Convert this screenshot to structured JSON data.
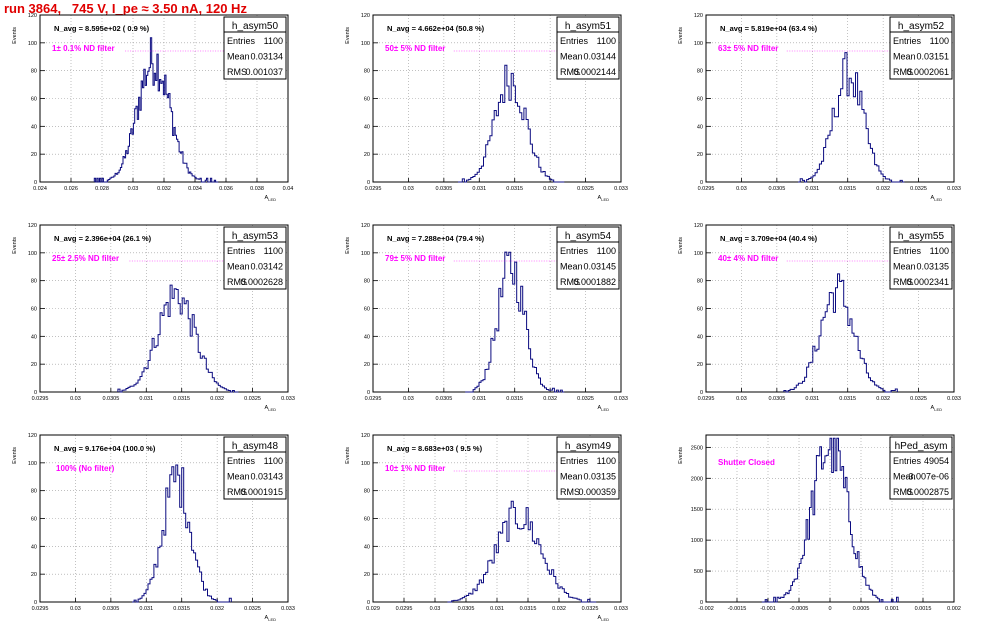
{
  "page_title": "run 3864,   745 V, I_pe ≈ 3.50 nA, 120 Hz",
  "colors": {
    "histogram": "#0b0b80",
    "annotation": "#ff00ff",
    "title": "#e00000",
    "grid": "#9a9a9a"
  },
  "chart_data": [
    {
      "type": "bar",
      "name": "h_asym50",
      "stats": {
        "entries": "1100",
        "mean": "0.03134",
        "rms": "0.001037"
      },
      "navg": "N_avg = 8.595e+02 ( 0.9 %)",
      "filter": "1± 0.1% ND filter",
      "xlabel": "A_LED",
      "ylabel": "Events",
      "xlim": [
        0.024,
        0.04
      ],
      "xticks": [
        0.024,
        0.026,
        0.028,
        0.03,
        0.032,
        0.034,
        0.036,
        0.038,
        0.04
      ],
      "xtick_labels": [
        "0.024",
        "0.026",
        "0.028",
        "0.03",
        "0.032",
        "0.034",
        "0.036",
        "0.038",
        "0.04"
      ],
      "ylim": [
        0,
        120
      ],
      "yticks": [
        0,
        20,
        40,
        60,
        80,
        100,
        120
      ],
      "dist": {
        "mean": 0.03134,
        "rms": 0.001037,
        "peak": 88,
        "bins": 95,
        "lo": 0.0275,
        "hi": 0.0355
      }
    },
    {
      "type": "bar",
      "name": "h_asym51",
      "stats": {
        "entries": "1100",
        "mean": "0.03144",
        "rms": "0.0002144"
      },
      "navg": "N_avg = 4.662e+04 (50.8 %)",
      "filter": "50± 5% ND filter",
      "xlabel": "A_LED",
      "ylabel": "Events",
      "xlim": [
        0.0295,
        0.033
      ],
      "xticks": [
        0.0295,
        0.03,
        0.0305,
        0.031,
        0.0315,
        0.032,
        0.0325,
        0.033
      ],
      "xtick_labels": [
        "0.0295",
        "0.03",
        "0.0305",
        "0.031",
        "0.0315",
        "0.032",
        "0.0325",
        "0.033"
      ],
      "ylim": [
        0,
        120
      ],
      "yticks": [
        0,
        20,
        40,
        60,
        80,
        100,
        120
      ],
      "dist": {
        "mean": 0.03144,
        "rms": 0.0002144,
        "peak": 75,
        "bins": 50,
        "lo": 0.0307,
        "hi": 0.0322
      }
    },
    {
      "type": "bar",
      "name": "h_asym52",
      "stats": {
        "entries": "1100",
        "mean": "0.03151",
        "rms": "0.0002061"
      },
      "navg": "N_avg = 5.819e+04 (63.4 %)",
      "filter": "63± 5% ND filter",
      "xlabel": "A_LED",
      "ylabel": "Events",
      "xlim": [
        0.0295,
        0.033
      ],
      "xticks": [
        0.0295,
        0.03,
        0.0305,
        0.031,
        0.0315,
        0.032,
        0.0325,
        0.033
      ],
      "xtick_labels": [
        "0.0295",
        "0.03",
        "0.0305",
        "0.031",
        "0.0315",
        "0.032",
        "0.0325",
        "0.033"
      ],
      "ylim": [
        0,
        120
      ],
      "yticks": [
        0,
        20,
        40,
        60,
        80,
        100,
        120
      ],
      "dist": {
        "mean": 0.03151,
        "rms": 0.0002061,
        "peak": 78,
        "bins": 50,
        "lo": 0.0308,
        "hi": 0.0323
      }
    },
    {
      "type": "bar",
      "name": "h_asym53",
      "stats": {
        "entries": "1100",
        "mean": "0.03142",
        "rms": "0.0002628"
      },
      "navg": "N_avg = 2.396e+04 (26.1 %)",
      "filter": "25± 2.5% ND filter",
      "xlabel": "A_LED",
      "ylabel": "Events",
      "xlim": [
        0.0295,
        0.033
      ],
      "xticks": [
        0.0295,
        0.03,
        0.0305,
        0.031,
        0.0315,
        0.032,
        0.0325,
        0.033
      ],
      "xtick_labels": [
        "0.0295",
        "0.03",
        "0.0305",
        "0.031",
        "0.0315",
        "0.032",
        "0.0325",
        "0.033"
      ],
      "ylim": [
        0,
        120
      ],
      "yticks": [
        0,
        20,
        40,
        60,
        80,
        100,
        120
      ],
      "dist": {
        "mean": 0.03142,
        "rms": 0.0002628,
        "peak": 70,
        "bins": 60,
        "lo": 0.0306,
        "hi": 0.0323
      }
    },
    {
      "type": "bar",
      "name": "h_asym54",
      "stats": {
        "entries": "1100",
        "mean": "0.03145",
        "rms": "0.0001882"
      },
      "navg": "N_avg = 7.288e+04 (79.4 %)",
      "filter": "79± 5% ND filter",
      "xlabel": "A_LED",
      "ylabel": "Events",
      "xlim": [
        0.0295,
        0.033
      ],
      "xticks": [
        0.0295,
        0.03,
        0.0305,
        0.031,
        0.0315,
        0.032,
        0.0325,
        0.033
      ],
      "xtick_labels": [
        "0.0295",
        "0.03",
        "0.0305",
        "0.031",
        "0.0315",
        "0.032",
        "0.0325",
        "0.033"
      ],
      "ylim": [
        0,
        120
      ],
      "yticks": [
        0,
        20,
        40,
        60,
        80,
        100,
        120
      ],
      "dist": {
        "mean": 0.03145,
        "rms": 0.0001882,
        "peak": 90,
        "bins": 50,
        "lo": 0.0308,
        "hi": 0.0322
      }
    },
    {
      "type": "bar",
      "name": "h_asym55",
      "stats": {
        "entries": "1100",
        "mean": "0.03135",
        "rms": "0.0002341"
      },
      "navg": "N_avg = 3.709e+04 (40.4 %)",
      "filter": "40± 4% ND filter",
      "xlabel": "A_LED",
      "ylabel": "Events",
      "xlim": [
        0.0295,
        0.033
      ],
      "xticks": [
        0.0295,
        0.03,
        0.0305,
        0.031,
        0.0315,
        0.032,
        0.0325,
        0.033
      ],
      "xtick_labels": [
        "0.0295",
        "0.03",
        "0.0305",
        "0.031",
        "0.0315",
        "0.032",
        "0.0325",
        "0.033"
      ],
      "ylim": [
        0,
        120
      ],
      "yticks": [
        0,
        20,
        40,
        60,
        80,
        100,
        120
      ],
      "dist": {
        "mean": 0.03135,
        "rms": 0.0002341,
        "peak": 73,
        "bins": 55,
        "lo": 0.0306,
        "hi": 0.0322
      }
    },
    {
      "type": "bar",
      "name": "h_asym48",
      "stats": {
        "entries": "1100",
        "mean": "0.03143",
        "rms": "0.0001915"
      },
      "navg": "N_avg = 9.176e+04 (100.0 %)",
      "filter": "100% (No filter)",
      "xlabel": "A_LED",
      "ylabel": "Events",
      "xlim": [
        0.0295,
        0.033
      ],
      "xticks": [
        0.0295,
        0.03,
        0.0305,
        0.031,
        0.0315,
        0.032,
        0.0325,
        0.033
      ],
      "xtick_labels": [
        "0.0295",
        "0.03",
        "0.0305",
        "0.031",
        "0.0315",
        "0.032",
        "0.0325",
        "0.033"
      ],
      "ylim": [
        0,
        120
      ],
      "yticks": [
        0,
        20,
        40,
        60,
        80,
        100,
        120
      ],
      "dist": {
        "mean": 0.03143,
        "rms": 0.0001915,
        "peak": 89,
        "bins": 50,
        "lo": 0.0308,
        "hi": 0.0322
      }
    },
    {
      "type": "bar",
      "name": "h_asym49",
      "stats": {
        "entries": "1100",
        "mean": "0.03135",
        "rms": "0.000359"
      },
      "navg": "N_avg = 8.683e+03 ( 9.5 %)",
      "filter": "10± 1% ND filter",
      "xlabel": "A_LED",
      "ylabel": "Events",
      "xlim": [
        0.029,
        0.033
      ],
      "xticks": [
        0.029,
        0.0295,
        0.03,
        0.0305,
        0.031,
        0.0315,
        0.032,
        0.0325,
        0.033
      ],
      "xtick_labels": [
        "0.029",
        "0.0295",
        "0.03",
        "0.0305",
        "0.031",
        "0.0315",
        "0.032",
        "0.0325",
        "0.033"
      ],
      "ylim": [
        0,
        120
      ],
      "yticks": [
        0,
        20,
        40,
        60,
        80,
        100,
        120
      ],
      "dist": {
        "mean": 0.03135,
        "rms": 0.000359,
        "peak": 62,
        "bins": 70,
        "lo": 0.0302,
        "hi": 0.0326
      }
    },
    {
      "type": "bar",
      "name": "hPed_asym",
      "stats": {
        "entries": "49054",
        "mean": "-3.007e-06",
        "rms": "0.0002875"
      },
      "navg": "",
      "filter": "Shutter Closed",
      "xlabel": "",
      "ylabel": "Events",
      "xlim": [
        -0.002,
        0.002
      ],
      "xticks": [
        -0.002,
        -0.0015,
        -0.001,
        -0.0005,
        0,
        0.0005,
        0.001,
        0.0015,
        0.002
      ],
      "xtick_labels": [
        "-0.002",
        "-0.0015",
        "-0.001",
        "-0.0005",
        "0",
        "0.0005",
        "0.001",
        "0.0015",
        "0.002"
      ],
      "ylim": [
        0,
        2700
      ],
      "yticks": [
        0,
        500,
        1000,
        1500,
        2000,
        2500
      ],
      "dist": {
        "mean": -3e-06,
        "rms": 0.0002875,
        "peak": 2550,
        "bins": 80,
        "lo": -0.0011,
        "hi": 0.0011
      }
    }
  ]
}
